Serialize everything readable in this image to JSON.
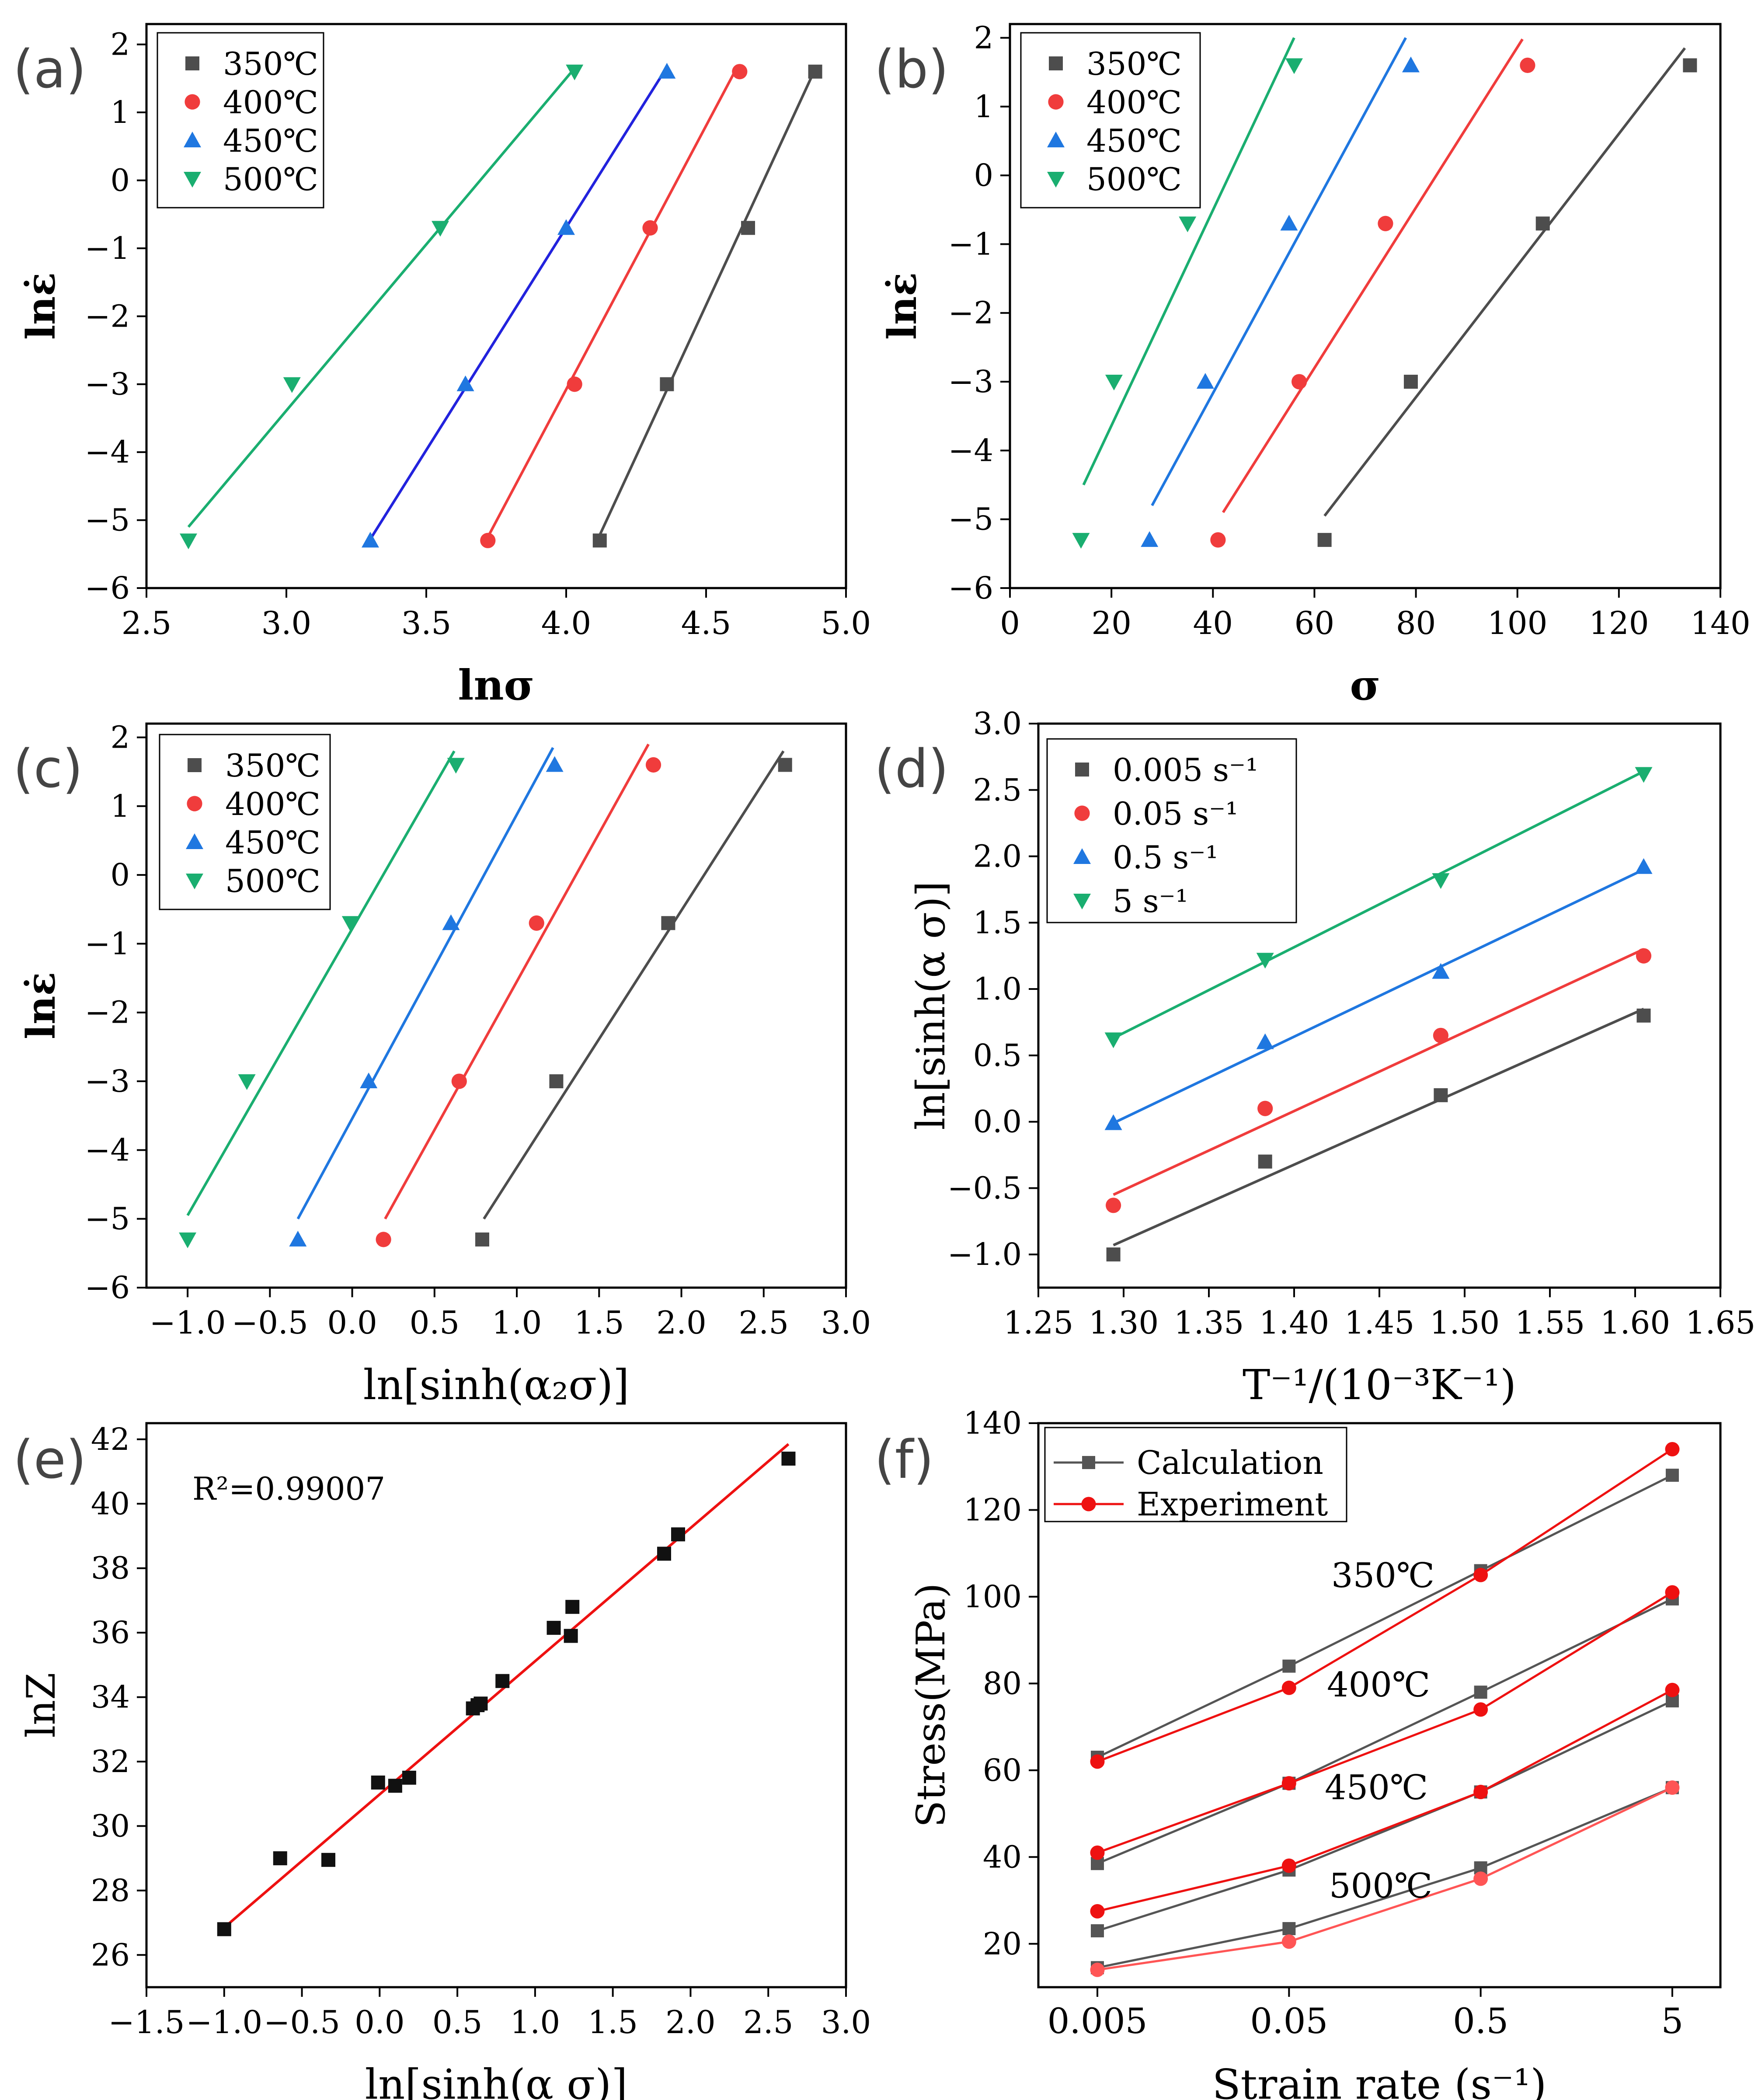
{
  "figure": {
    "panel_labels": [
      "(a)",
      "(b)",
      "(c)",
      "(d)",
      "(e)",
      "(f)"
    ]
  },
  "colors": {
    "c350": "#4d4d4d",
    "c400": "#f03c3c",
    "c450": "#1f77e0",
    "c500": "#1aae70",
    "line450a": "#2222dd",
    "red": "#ee1111",
    "black": "#111111",
    "gray": "#555555",
    "pink": "#ff5555"
  },
  "chart_data": [
    {
      "id": "a",
      "type": "scatter",
      "title": "",
      "xlabel": "lnσ",
      "ylabel": "lnε̇",
      "xlim": [
        2.5,
        5.0
      ],
      "ylim": [
        -6,
        2.3
      ],
      "xticks": [
        2.5,
        3.0,
        3.5,
        4.0,
        4.5,
        5.0
      ],
      "xtick_labels": [
        "2.5",
        "3.0",
        "3.5",
        "4.0",
        "4.5",
        "5.0"
      ],
      "yticks": [
        -6,
        -5,
        -4,
        -3,
        -2,
        -1,
        0,
        1,
        2
      ],
      "ytick_labels": [
        "−6",
        "−5",
        "−4",
        "−3",
        "−2",
        "−1",
        "0",
        "1",
        "2"
      ],
      "legend": {
        "position": "top-left",
        "entries": [
          "350℃",
          "400℃",
          "450℃",
          "500℃"
        ]
      },
      "series": [
        {
          "name": "350℃",
          "marker": "square",
          "color": "#4d4d4d",
          "x": [
            4.12,
            4.36,
            4.65,
            4.89
          ],
          "y": [
            -5.3,
            -3.0,
            -0.7,
            1.6
          ],
          "fit": [
            [
              4.12,
              -5.22
            ],
            [
              4.88,
              1.55
            ]
          ]
        },
        {
          "name": "400℃",
          "marker": "circle",
          "color": "#f03c3c",
          "x": [
            3.72,
            4.03,
            4.3,
            4.62
          ],
          "y": [
            -5.3,
            -3.0,
            -0.7,
            1.6
          ],
          "fit": [
            [
              3.72,
              -5.25
            ],
            [
              4.6,
              1.58
            ]
          ]
        },
        {
          "name": "450℃",
          "marker": "triangle-up",
          "color": "#1f77e0",
          "line_color": "#2222dd",
          "x": [
            3.3,
            3.64,
            4.0,
            4.36
          ],
          "y": [
            -5.3,
            -3.0,
            -0.7,
            1.6
          ],
          "fit": [
            [
              3.3,
              -5.28
            ],
            [
              4.35,
              1.6
            ]
          ]
        },
        {
          "name": "500℃",
          "marker": "triangle-down",
          "color": "#1aae70",
          "x": [
            2.65,
            3.02,
            3.55,
            4.03
          ],
          "y": [
            -5.3,
            -3.0,
            -0.7,
            1.6
          ],
          "fit": [
            [
              2.65,
              -5.1
            ],
            [
              4.02,
              1.6
            ]
          ]
        }
      ]
    },
    {
      "id": "b",
      "type": "scatter",
      "title": "",
      "xlabel": "σ",
      "ylabel": "lnε̇",
      "xlim": [
        0,
        140
      ],
      "ylim": [
        -6,
        2.2
      ],
      "xticks": [
        0,
        20,
        40,
        60,
        80,
        100,
        120,
        140
      ],
      "xtick_labels": [
        "0",
        "20",
        "40",
        "60",
        "80",
        "100",
        "120",
        "140"
      ],
      "yticks": [
        -6,
        -5,
        -4,
        -3,
        -2,
        -1,
        0,
        1,
        2
      ],
      "ytick_labels": [
        "−6",
        "−5",
        "−4",
        "−3",
        "−2",
        "−1",
        "0",
        "1",
        "2"
      ],
      "legend": {
        "position": "top-left",
        "entries": [
          "350℃",
          "400℃",
          "450℃",
          "500℃"
        ]
      },
      "series": [
        {
          "name": "350℃",
          "marker": "square",
          "color": "#4d4d4d",
          "x": [
            62,
            79,
            105,
            134
          ],
          "y": [
            -5.3,
            -3.0,
            -0.7,
            1.6
          ],
          "fit": [
            [
              62,
              -4.95
            ],
            [
              133,
              1.85
            ]
          ]
        },
        {
          "name": "400℃",
          "marker": "circle",
          "color": "#f03c3c",
          "x": [
            41,
            57,
            74,
            102
          ],
          "y": [
            -5.3,
            -3.0,
            -0.7,
            1.6
          ],
          "fit": [
            [
              42,
              -4.9
            ],
            [
              101,
              1.98
            ]
          ]
        },
        {
          "name": "450℃",
          "marker": "triangle-up",
          "color": "#1f77e0",
          "x": [
            27.5,
            38.5,
            55,
            79
          ],
          "y": [
            -5.3,
            -3.0,
            -0.7,
            1.6
          ],
          "fit": [
            [
              28,
              -4.8
            ],
            [
              78,
              2.0
            ]
          ]
        },
        {
          "name": "500℃",
          "marker": "triangle-down",
          "color": "#1aae70",
          "x": [
            14,
            20.5,
            35,
            56
          ],
          "y": [
            -5.3,
            -3.0,
            -0.7,
            1.6
          ],
          "fit": [
            [
              14.5,
              -4.5
            ],
            [
              56,
              2.0
            ]
          ]
        }
      ]
    },
    {
      "id": "c",
      "type": "scatter",
      "title": "",
      "xlabel": "ln[sinh(α₂σ)]",
      "ylabel": "lnε̇",
      "xlim": [
        -1.25,
        3.0
      ],
      "ylim": [
        -6,
        2.2
      ],
      "xticks": [
        -1.0,
        -0.5,
        0.0,
        0.5,
        1.0,
        1.5,
        2.0,
        2.5,
        3.0
      ],
      "xtick_labels": [
        "−1.0",
        "−0.5",
        "0.0",
        "0.5",
        "1.0",
        "1.5",
        "2.0",
        "2.5",
        "3.0"
      ],
      "yticks": [
        -6,
        -5,
        -4,
        -3,
        -2,
        -1,
        0,
        1,
        2
      ],
      "ytick_labels": [
        "−6",
        "−5",
        "−4",
        "−3",
        "−2",
        "−1",
        "0",
        "1",
        "2"
      ],
      "legend": {
        "position": "top-left",
        "entries": [
          "350℃",
          "400℃",
          "450℃",
          "500℃"
        ]
      },
      "series": [
        {
          "name": "350℃",
          "marker": "square",
          "color": "#4d4d4d",
          "x": [
            0.79,
            1.24,
            1.92,
            2.63
          ],
          "y": [
            -5.3,
            -3.0,
            -0.7,
            1.6
          ],
          "fit": [
            [
              0.8,
              -5.0
            ],
            [
              2.62,
              1.8
            ]
          ]
        },
        {
          "name": "400℃",
          "marker": "circle",
          "color": "#f03c3c",
          "x": [
            0.19,
            0.65,
            1.12,
            1.83
          ],
          "y": [
            -5.3,
            -3.0,
            -0.7,
            1.6
          ],
          "fit": [
            [
              0.2,
              -5.0
            ],
            [
              1.8,
              1.9
            ]
          ]
        },
        {
          "name": "450℃",
          "marker": "triangle-up",
          "color": "#1f77e0",
          "x": [
            -0.33,
            0.1,
            0.6,
            1.23
          ],
          "y": [
            -5.3,
            -3.0,
            -0.7,
            1.6
          ],
          "fit": [
            [
              -0.33,
              -5.0
            ],
            [
              1.22,
              1.85
            ]
          ]
        },
        {
          "name": "500℃",
          "marker": "triangle-down",
          "color": "#1aae70",
          "x": [
            -1.0,
            -0.64,
            -0.01,
            0.63
          ],
          "y": [
            -5.3,
            -3.0,
            -0.7,
            1.6
          ],
          "fit": [
            [
              -1.0,
              -4.95
            ],
            [
              0.62,
              1.8
            ]
          ]
        }
      ]
    },
    {
      "id": "d",
      "type": "scatter",
      "title": "",
      "xlabel": "T⁻¹/(10⁻³K⁻¹)",
      "ylabel": "ln[sinh(α σ)]",
      "xlim": [
        1.25,
        1.65
      ],
      "ylim": [
        -1.25,
        3.0
      ],
      "xticks": [
        1.25,
        1.3,
        1.35,
        1.4,
        1.45,
        1.5,
        1.55,
        1.6,
        1.65
      ],
      "xtick_labels": [
        "1.25",
        "1.30",
        "1.35",
        "1.40",
        "1.45",
        "1.50",
        "1.55",
        "1.60",
        "1.65"
      ],
      "yticks": [
        -1.0,
        -0.5,
        0.0,
        0.5,
        1.0,
        1.5,
        2.0,
        2.5,
        3.0
      ],
      "ytick_labels": [
        "−1.0",
        "−0.5",
        "0.0",
        "0.5",
        "1.0",
        "1.5",
        "2.0",
        "2.5",
        "3.0"
      ],
      "legend": {
        "position": "top-left",
        "entries": [
          "0.005 s⁻¹",
          "0.05 s⁻¹",
          "0.5 s⁻¹",
          "5 s⁻¹"
        ]
      },
      "series": [
        {
          "name": "0.005 s⁻¹",
          "marker": "square",
          "color": "#4d4d4d",
          "x": [
            1.294,
            1.383,
            1.486,
            1.605
          ],
          "y": [
            -1.0,
            -0.3,
            0.2,
            0.8
          ],
          "fit": [
            [
              1.294,
              -0.93
            ],
            [
              1.605,
              0.85
            ]
          ]
        },
        {
          "name": "0.05 s⁻¹",
          "marker": "circle",
          "color": "#f03c3c",
          "x": [
            1.294,
            1.383,
            1.486,
            1.605
          ],
          "y": [
            -0.63,
            0.1,
            0.65,
            1.25
          ],
          "fit": [
            [
              1.294,
              -0.55
            ],
            [
              1.605,
              1.3
            ]
          ]
        },
        {
          "name": "0.5 s⁻¹",
          "marker": "triangle-up",
          "color": "#1f77e0",
          "x": [
            1.294,
            1.383,
            1.486,
            1.605
          ],
          "y": [
            -0.01,
            0.6,
            1.13,
            1.92
          ],
          "fit": [
            [
              1.294,
              -0.01
            ],
            [
              1.605,
              1.9
            ]
          ]
        },
        {
          "name": "5 s⁻¹",
          "marker": "triangle-down",
          "color": "#1aae70",
          "x": [
            1.294,
            1.383,
            1.486,
            1.605
          ],
          "y": [
            0.62,
            1.22,
            1.82,
            2.62
          ],
          "fit": [
            [
              1.294,
              0.63
            ],
            [
              1.605,
              2.64
            ]
          ]
        }
      ]
    },
    {
      "id": "e",
      "type": "scatter",
      "title": "",
      "xlabel": "ln[sinh(α σ)]",
      "ylabel": "lnZ",
      "xlim": [
        -1.5,
        3.0
      ],
      "ylim": [
        25,
        42.5
      ],
      "xticks": [
        -1.5,
        -1.0,
        -0.5,
        0.0,
        0.5,
        1.0,
        1.5,
        2.0,
        2.5,
        3.0
      ],
      "xtick_labels": [
        "−1.5",
        "−1.0",
        "−0.5",
        "0.0",
        "0.5",
        "1.0",
        "1.5",
        "2.0",
        "2.5",
        "3.0"
      ],
      "yticks": [
        26,
        28,
        30,
        32,
        34,
        36,
        38,
        40,
        42
      ],
      "ytick_labels": [
        "26",
        "28",
        "30",
        "32",
        "34",
        "36",
        "38",
        "40",
        "42"
      ],
      "annotation": "R²=0.99007",
      "series": [
        {
          "name": "data",
          "marker": "square",
          "color": "#111111",
          "x": [
            -1.0,
            -0.64,
            -0.33,
            -0.01,
            0.1,
            0.19,
            0.6,
            0.63,
            0.65,
            0.79,
            1.12,
            1.23,
            1.24,
            1.83,
            1.92,
            2.63
          ],
          "y": [
            26.8,
            29.0,
            28.95,
            31.35,
            31.25,
            31.5,
            33.65,
            33.75,
            33.8,
            34.5,
            36.15,
            35.9,
            36.8,
            38.45,
            39.05,
            41.4
          ],
          "fit": [
            [
              -1.0,
              26.85
            ],
            [
              2.63,
              41.85
            ]
          ],
          "line_color": "#ee1111"
        }
      ]
    },
    {
      "id": "f",
      "type": "line",
      "title": "",
      "xlabel": "Strain rate (s⁻¹)",
      "ylabel": "Stress(MPa)",
      "categories": [
        "0.005",
        "0.05",
        "0.5",
        "5"
      ],
      "ylim": [
        10,
        140
      ],
      "yticks": [
        20,
        40,
        60,
        80,
        100,
        120,
        140
      ],
      "ytick_labels": [
        "20",
        "40",
        "60",
        "80",
        "100",
        "120",
        "140"
      ],
      "legend": {
        "position": "top-left",
        "entries": [
          "Calculation",
          "Experiment"
        ]
      },
      "group_labels": [
        "350℃",
        "400℃",
        "450℃",
        "500℃"
      ],
      "series": [
        {
          "name": "Calculation 350℃",
          "kind": "Calculation",
          "color": "#555555",
          "marker": "square",
          "values": [
            63,
            84,
            106,
            128
          ]
        },
        {
          "name": "Experiment 350℃",
          "kind": "Experiment",
          "color": "#ee1111",
          "marker": "circle",
          "values": [
            62,
            79,
            105,
            134
          ]
        },
        {
          "name": "Calculation 400℃",
          "kind": "Calculation",
          "color": "#555555",
          "marker": "square",
          "values": [
            38.5,
            57,
            78,
            99.5
          ]
        },
        {
          "name": "Experiment 400℃",
          "kind": "Experiment",
          "color": "#ee1111",
          "marker": "circle",
          "values": [
            41,
            57,
            74,
            101
          ]
        },
        {
          "name": "Calculation 450℃",
          "kind": "Calculation",
          "color": "#555555",
          "marker": "square",
          "values": [
            23,
            37,
            55,
            76
          ]
        },
        {
          "name": "Experiment 450℃",
          "kind": "Experiment",
          "color": "#ee1111",
          "marker": "circle",
          "values": [
            27.5,
            38,
            55,
            78.5
          ]
        },
        {
          "name": "Calculation 500℃",
          "kind": "Calculation",
          "color": "#555555",
          "marker": "square",
          "values": [
            14.5,
            23.5,
            37.5,
            56
          ]
        },
        {
          "name": "Experiment 500℃",
          "kind": "Experiment",
          "color": "#ff5555",
          "marker": "circle",
          "values": [
            14,
            20.5,
            35,
            56
          ]
        }
      ]
    }
  ]
}
